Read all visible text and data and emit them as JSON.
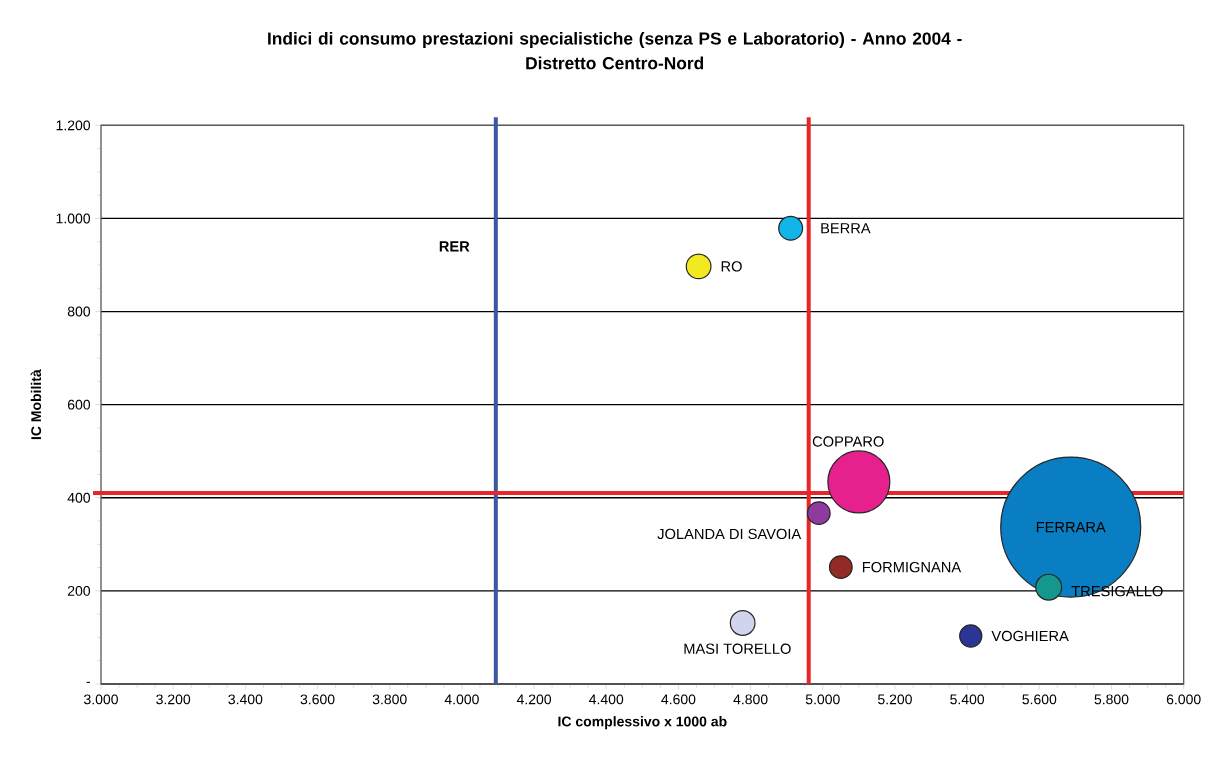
{
  "chart_data": {
    "type": "bubble",
    "title": "Indici di consumo prestazioni specialistiche (senza PS e Laboratorio) - Anno 2004 -\nDistretto Centro-Nord",
    "xlabel": "IC complessivo x 1000 ab",
    "ylabel": "IC Mobilità",
    "xlim": [
      3000,
      6000
    ],
    "ylim": [
      0,
      1200
    ],
    "xticks": [
      {
        "value": 3000,
        "label": "3.000"
      },
      {
        "value": 3200,
        "label": "3.200"
      },
      {
        "value": 3400,
        "label": "3.400"
      },
      {
        "value": 3600,
        "label": "3.600"
      },
      {
        "value": 3800,
        "label": "3.800"
      },
      {
        "value": 4000,
        "label": "4.000"
      },
      {
        "value": 4200,
        "label": "4.200"
      },
      {
        "value": 4400,
        "label": "4.400"
      },
      {
        "value": 4600,
        "label": "4.600"
      },
      {
        "value": 4800,
        "label": "4.800"
      },
      {
        "value": 5000,
        "label": "5.000"
      },
      {
        "value": 5200,
        "label": "5.200"
      },
      {
        "value": 5400,
        "label": "5.400"
      },
      {
        "value": 5600,
        "label": "5.600"
      },
      {
        "value": 5800,
        "label": "5.800"
      },
      {
        "value": 6000,
        "label": "6.000"
      }
    ],
    "yticks": [
      {
        "value": 0,
        "label": "-"
      },
      200,
      400,
      600,
      800,
      {
        "value": 1000,
        "label": "1.000"
      },
      {
        "value": 1200,
        "label": "1.200"
      }
    ],
    "grid": "y",
    "x": [
      4911,
      4656,
      5100,
      4989,
      5050,
      4778,
      5687,
      5626,
      5410
    ],
    "values": [
      979,
      897,
      434,
      367,
      251,
      131,
      337,
      208,
      103
    ],
    "sizes": [
      0.029,
      0.031,
      0.196,
      0.026,
      0.026,
      0.031,
      1,
      0.034,
      0.025
    ],
    "colors": [
      "#12b4ea",
      "#f2ea20",
      "#e6208c",
      "#8e3a9e",
      "#922a26",
      "#d0d4ec",
      "#0a7ec2",
      "#14988e",
      "#2b3596"
    ],
    "annotations": [
      {
        "text": "BERRA",
        "x": 4911,
        "y": 979
      },
      {
        "text": "RO",
        "x": 4656,
        "y": 897
      },
      {
        "text": "COPPARO",
        "x": 5100,
        "y": 434
      },
      {
        "text": "JOLANDA DI SAVOIA",
        "x": 4989,
        "y": 367
      },
      {
        "text": "FORMIGNANA",
        "x": 5050,
        "y": 251
      },
      {
        "text": "MASI TORELLO",
        "x": 4778,
        "y": 131
      },
      {
        "text": "FERRARA",
        "x": 5687,
        "y": 337
      },
      {
        "text": "TRESIGALLO",
        "x": 5626,
        "y": 208
      },
      {
        "text": "VOGHIERA",
        "x": 5410,
        "y": 103
      }
    ],
    "ref_lines": [
      {
        "axis": "x",
        "value": 4094,
        "label": "RER",
        "color": "#3c55a5"
      },
      {
        "axis": "x",
        "value": 4961,
        "color": "#e8262a"
      },
      {
        "axis": "y",
        "value": 410,
        "color": "#e8262a"
      }
    ]
  }
}
